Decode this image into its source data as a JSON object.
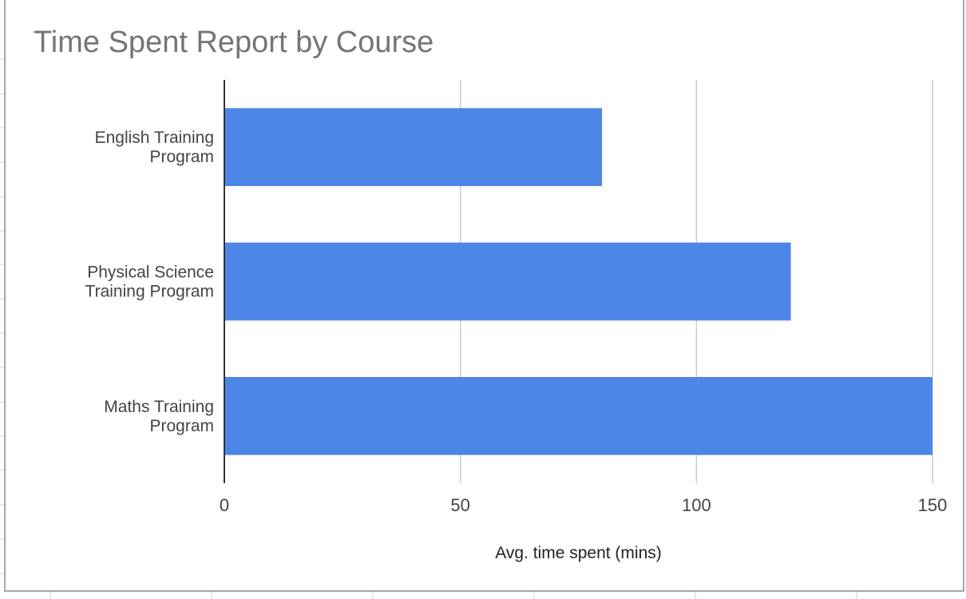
{
  "chart_data": {
    "type": "bar",
    "orientation": "horizontal",
    "title": "Time Spent Report by Course",
    "categories": [
      [
        "English Training",
        "Program"
      ],
      [
        "Physical Science",
        "Training Program"
      ],
      [
        "Maths Training",
        "Program"
      ]
    ],
    "values": [
      80,
      120,
      150
    ],
    "xlabel": "Avg. time spent (mins)",
    "ylabel": "",
    "xlim": [
      0,
      150
    ],
    "xticks": [
      "0",
      "50",
      "100",
      "150"
    ],
    "xtick_values": [
      0,
      50,
      100,
      150
    ],
    "grid": true,
    "legend": "none",
    "bar_color": "#4e86e8",
    "grid_color": "#cccccc",
    "axis_color": "#333333"
  }
}
